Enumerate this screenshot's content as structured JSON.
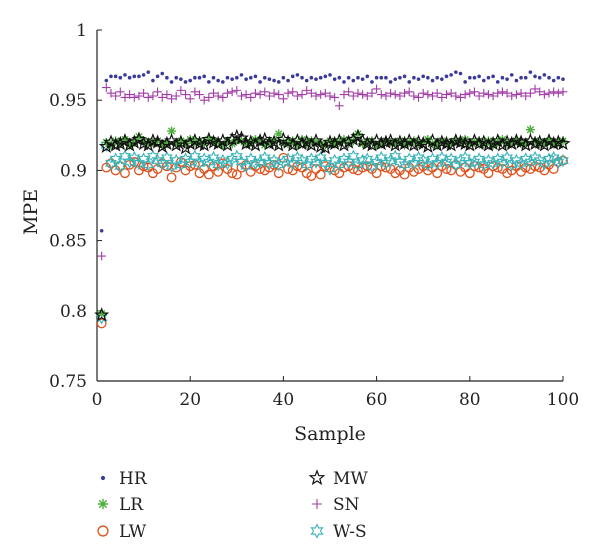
{
  "chart_data": {
    "type": "scatter",
    "xlabel": "Sample",
    "ylabel": "MPE",
    "xlim": [
      0,
      100
    ],
    "ylim": [
      0.75,
      1.0
    ],
    "x_ticks": [
      0,
      20,
      40,
      60,
      80,
      100
    ],
    "y_ticks": [
      0.75,
      0.8,
      0.85,
      0.9,
      0.95,
      1.0
    ],
    "y_tick_labels": [
      "0.75",
      "0.8",
      "0.85",
      "0.9",
      "0.95",
      "1"
    ],
    "x_tick_labels": [
      "0",
      "20",
      "40",
      "60",
      "80",
      "100"
    ],
    "legend_position": "bottom",
    "series": [
      {
        "name": "HR",
        "marker": "dot",
        "color": "#3a3a9c",
        "values": [
          0.857,
          0.964,
          0.967,
          0.967,
          0.966,
          0.968,
          0.966,
          0.967,
          0.967,
          0.968,
          0.97,
          0.964,
          0.967,
          0.969,
          0.966,
          0.963,
          0.966,
          0.965,
          0.963,
          0.964,
          0.966,
          0.966,
          0.967,
          0.963,
          0.966,
          0.964,
          0.963,
          0.966,
          0.965,
          0.966,
          0.968,
          0.965,
          0.966,
          0.967,
          0.963,
          0.966,
          0.965,
          0.964,
          0.963,
          0.966,
          0.964,
          0.967,
          0.968,
          0.966,
          0.964,
          0.966,
          0.965,
          0.966,
          0.967,
          0.968,
          0.965,
          0.966,
          0.963,
          0.966,
          0.964,
          0.966,
          0.965,
          0.967,
          0.963,
          0.966,
          0.966,
          0.966,
          0.963,
          0.965,
          0.966,
          0.967,
          0.963,
          0.966,
          0.965,
          0.967,
          0.966,
          0.964,
          0.966,
          0.965,
          0.967,
          0.968,
          0.97,
          0.969,
          0.963,
          0.966,
          0.966,
          0.967,
          0.964,
          0.966,
          0.967,
          0.963,
          0.966,
          0.965,
          0.968,
          0.964,
          0.966,
          0.966,
          0.97,
          0.967,
          0.966,
          0.968,
          0.966,
          0.964,
          0.966,
          0.965
        ]
      },
      {
        "name": "LR",
        "marker": "asterisk",
        "color": "#4caf3c",
        "values": [
          0.798,
          0.92,
          0.918,
          0.921,
          0.919,
          0.922,
          0.918,
          0.92,
          0.924,
          0.921,
          0.919,
          0.92,
          0.921,
          0.918,
          0.919,
          0.928,
          0.919,
          0.921,
          0.919,
          0.922,
          0.92,
          0.921,
          0.919,
          0.922,
          0.921,
          0.92,
          0.918,
          0.921,
          0.919,
          0.922,
          0.921,
          0.919,
          0.92,
          0.922,
          0.921,
          0.918,
          0.92,
          0.921,
          0.926,
          0.92,
          0.919,
          0.921,
          0.918,
          0.922,
          0.919,
          0.921,
          0.92,
          0.919,
          0.918,
          0.921,
          0.919,
          0.92,
          0.922,
          0.919,
          0.921,
          0.926,
          0.919,
          0.92,
          0.921,
          0.918,
          0.919,
          0.921,
          0.92,
          0.919,
          0.921,
          0.918,
          0.92,
          0.921,
          0.919,
          0.92,
          0.922,
          0.919,
          0.918,
          0.921,
          0.92,
          0.919,
          0.921,
          0.92,
          0.922,
          0.919,
          0.92,
          0.921,
          0.919,
          0.921,
          0.918,
          0.92,
          0.922,
          0.919,
          0.92,
          0.921,
          0.919,
          0.92,
          0.929,
          0.921,
          0.919,
          0.92,
          0.921,
          0.919,
          0.92,
          0.921
        ]
      },
      {
        "name": "LW",
        "marker": "circle",
        "color": "#e0521c",
        "values": [
          0.791,
          0.902,
          0.905,
          0.9,
          0.903,
          0.898,
          0.904,
          0.906,
          0.9,
          0.903,
          0.902,
          0.898,
          0.901,
          0.905,
          0.903,
          0.895,
          0.902,
          0.906,
          0.9,
          0.903,
          0.904,
          0.898,
          0.901,
          0.897,
          0.903,
          0.899,
          0.905,
          0.901,
          0.898,
          0.897,
          0.902,
          0.904,
          0.899,
          0.903,
          0.901,
          0.9,
          0.902,
          0.904,
          0.898,
          0.909,
          0.901,
          0.9,
          0.903,
          0.902,
          0.898,
          0.896,
          0.901,
          0.897,
          0.903,
          0.902,
          0.9,
          0.898,
          0.902,
          0.903,
          0.901,
          0.9,
          0.902,
          0.903,
          0.901,
          0.898,
          0.903,
          0.902,
          0.901,
          0.898,
          0.9,
          0.897,
          0.902,
          0.899,
          0.901,
          0.903,
          0.9,
          0.902,
          0.898,
          0.903,
          0.901,
          0.9,
          0.904,
          0.899,
          0.902,
          0.898,
          0.903,
          0.902,
          0.901,
          0.898,
          0.903,
          0.902,
          0.901,
          0.898,
          0.9,
          0.903,
          0.899,
          0.902,
          0.901,
          0.903,
          0.902,
          0.9,
          0.904,
          0.901,
          0.906,
          0.907
        ]
      },
      {
        "name": "MW",
        "marker": "star",
        "color": "#111111",
        "values": [
          0.797,
          0.917,
          0.92,
          0.918,
          0.919,
          0.921,
          0.918,
          0.92,
          0.922,
          0.919,
          0.918,
          0.921,
          0.92,
          0.917,
          0.919,
          0.921,
          0.918,
          0.92,
          0.916,
          0.919,
          0.921,
          0.919,
          0.918,
          0.922,
          0.92,
          0.919,
          0.921,
          0.918,
          0.922,
          0.924,
          0.923,
          0.919,
          0.92,
          0.918,
          0.921,
          0.922,
          0.919,
          0.92,
          0.918,
          0.922,
          0.92,
          0.918,
          0.921,
          0.919,
          0.92,
          0.918,
          0.921,
          0.917,
          0.916,
          0.92,
          0.919,
          0.921,
          0.918,
          0.92,
          0.922,
          0.924,
          0.921,
          0.919,
          0.918,
          0.921,
          0.919,
          0.92,
          0.921,
          0.918,
          0.92,
          0.919,
          0.921,
          0.918,
          0.92,
          0.919,
          0.917,
          0.921,
          0.918,
          0.92,
          0.919,
          0.918,
          0.921,
          0.92,
          0.919,
          0.918,
          0.921,
          0.919,
          0.92,
          0.918,
          0.919,
          0.921,
          0.918,
          0.92,
          0.919,
          0.921,
          0.92,
          0.918,
          0.921,
          0.919,
          0.92,
          0.918,
          0.921,
          0.919,
          0.92,
          0.919
        ]
      },
      {
        "name": "SN",
        "marker": "plus",
        "color": "#a23ba8",
        "values": [
          0.839,
          0.959,
          0.955,
          0.953,
          0.956,
          0.952,
          0.954,
          0.952,
          0.953,
          0.955,
          0.952,
          0.953,
          0.956,
          0.952,
          0.954,
          0.951,
          0.953,
          0.957,
          0.954,
          0.951,
          0.956,
          0.954,
          0.95,
          0.952,
          0.955,
          0.953,
          0.952,
          0.955,
          0.956,
          0.957,
          0.953,
          0.954,
          0.952,
          0.955,
          0.954,
          0.956,
          0.953,
          0.955,
          0.954,
          0.951,
          0.955,
          0.956,
          0.953,
          0.954,
          0.957,
          0.955,
          0.953,
          0.954,
          0.955,
          0.953,
          0.952,
          0.946,
          0.954,
          0.956,
          0.953,
          0.955,
          0.954,
          0.953,
          0.955,
          0.958,
          0.954,
          0.953,
          0.955,
          0.954,
          0.953,
          0.955,
          0.956,
          0.953,
          0.952,
          0.955,
          0.954,
          0.953,
          0.955,
          0.952,
          0.954,
          0.955,
          0.953,
          0.952,
          0.954,
          0.955,
          0.956,
          0.953,
          0.955,
          0.954,
          0.953,
          0.955,
          0.956,
          0.955,
          0.953,
          0.954,
          0.955,
          0.953,
          0.955,
          0.958,
          0.956,
          0.954,
          0.955,
          0.956,
          0.955,
          0.956
        ]
      },
      {
        "name": "W-S",
        "marker": "hexstar",
        "color": "#3ab3b8",
        "values": [
          0.795,
          0.918,
          0.905,
          0.908,
          0.903,
          0.91,
          0.906,
          0.909,
          0.905,
          0.908,
          0.904,
          0.91,
          0.907,
          0.905,
          0.909,
          0.903,
          0.907,
          0.904,
          0.908,
          0.906,
          0.91,
          0.905,
          0.908,
          0.906,
          0.909,
          0.904,
          0.907,
          0.905,
          0.908,
          0.91,
          0.906,
          0.903,
          0.908,
          0.905,
          0.906,
          0.909,
          0.905,
          0.907,
          0.904,
          0.906,
          0.908,
          0.905,
          0.909,
          0.907,
          0.904,
          0.908,
          0.906,
          0.909,
          0.905,
          0.901,
          0.907,
          0.904,
          0.908,
          0.906,
          0.91,
          0.904,
          0.907,
          0.908,
          0.903,
          0.906,
          0.909,
          0.905,
          0.907,
          0.91,
          0.906,
          0.904,
          0.908,
          0.905,
          0.909,
          0.907,
          0.904,
          0.908,
          0.905,
          0.909,
          0.906,
          0.908,
          0.904,
          0.907,
          0.909,
          0.905,
          0.906,
          0.908,
          0.904,
          0.907,
          0.905,
          0.908,
          0.906,
          0.909,
          0.904,
          0.907,
          0.905,
          0.908,
          0.906,
          0.909,
          0.907,
          0.905,
          0.908,
          0.909,
          0.906,
          0.907
        ]
      }
    ]
  }
}
